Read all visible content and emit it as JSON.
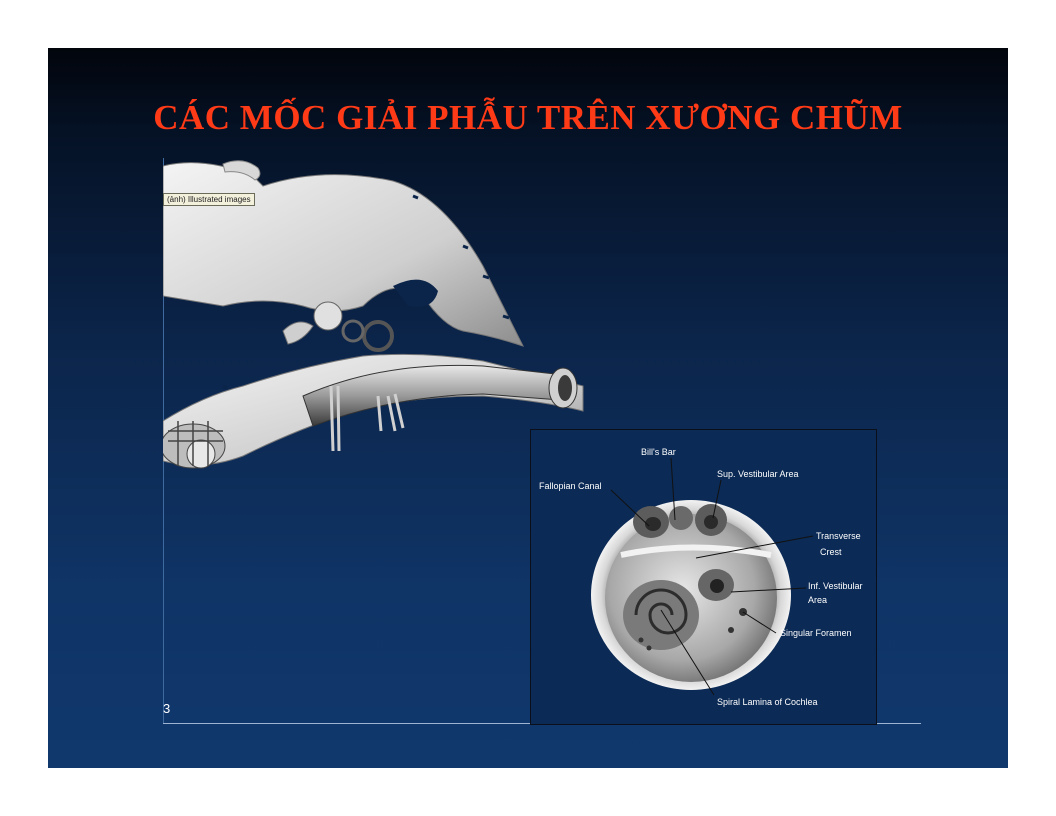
{
  "slide": {
    "title": "CÁC MỐC GIẢI PHẪU TRÊN XƯƠNG CHŨM",
    "tooltip": "(ảnh) Illustrated images",
    "slide_number": "3"
  },
  "inset": {
    "labels": {
      "bills_bar": "Bill's Bar",
      "sup_vestibular": "Sup. Vestibular Area",
      "fallopian": "Fallopian Canal",
      "transverse_1": "Transverse",
      "transverse_2": "Crest",
      "inf_vestibular_1": "Inf. Vestibular",
      "inf_vestibular_2": "Area",
      "singular": "Singular Foramen",
      "spiral": "Spiral Lamina of Cochlea"
    }
  },
  "colors": {
    "title": "#ff3a17",
    "background_top": "#02050c",
    "background_bottom": "#10386d"
  }
}
